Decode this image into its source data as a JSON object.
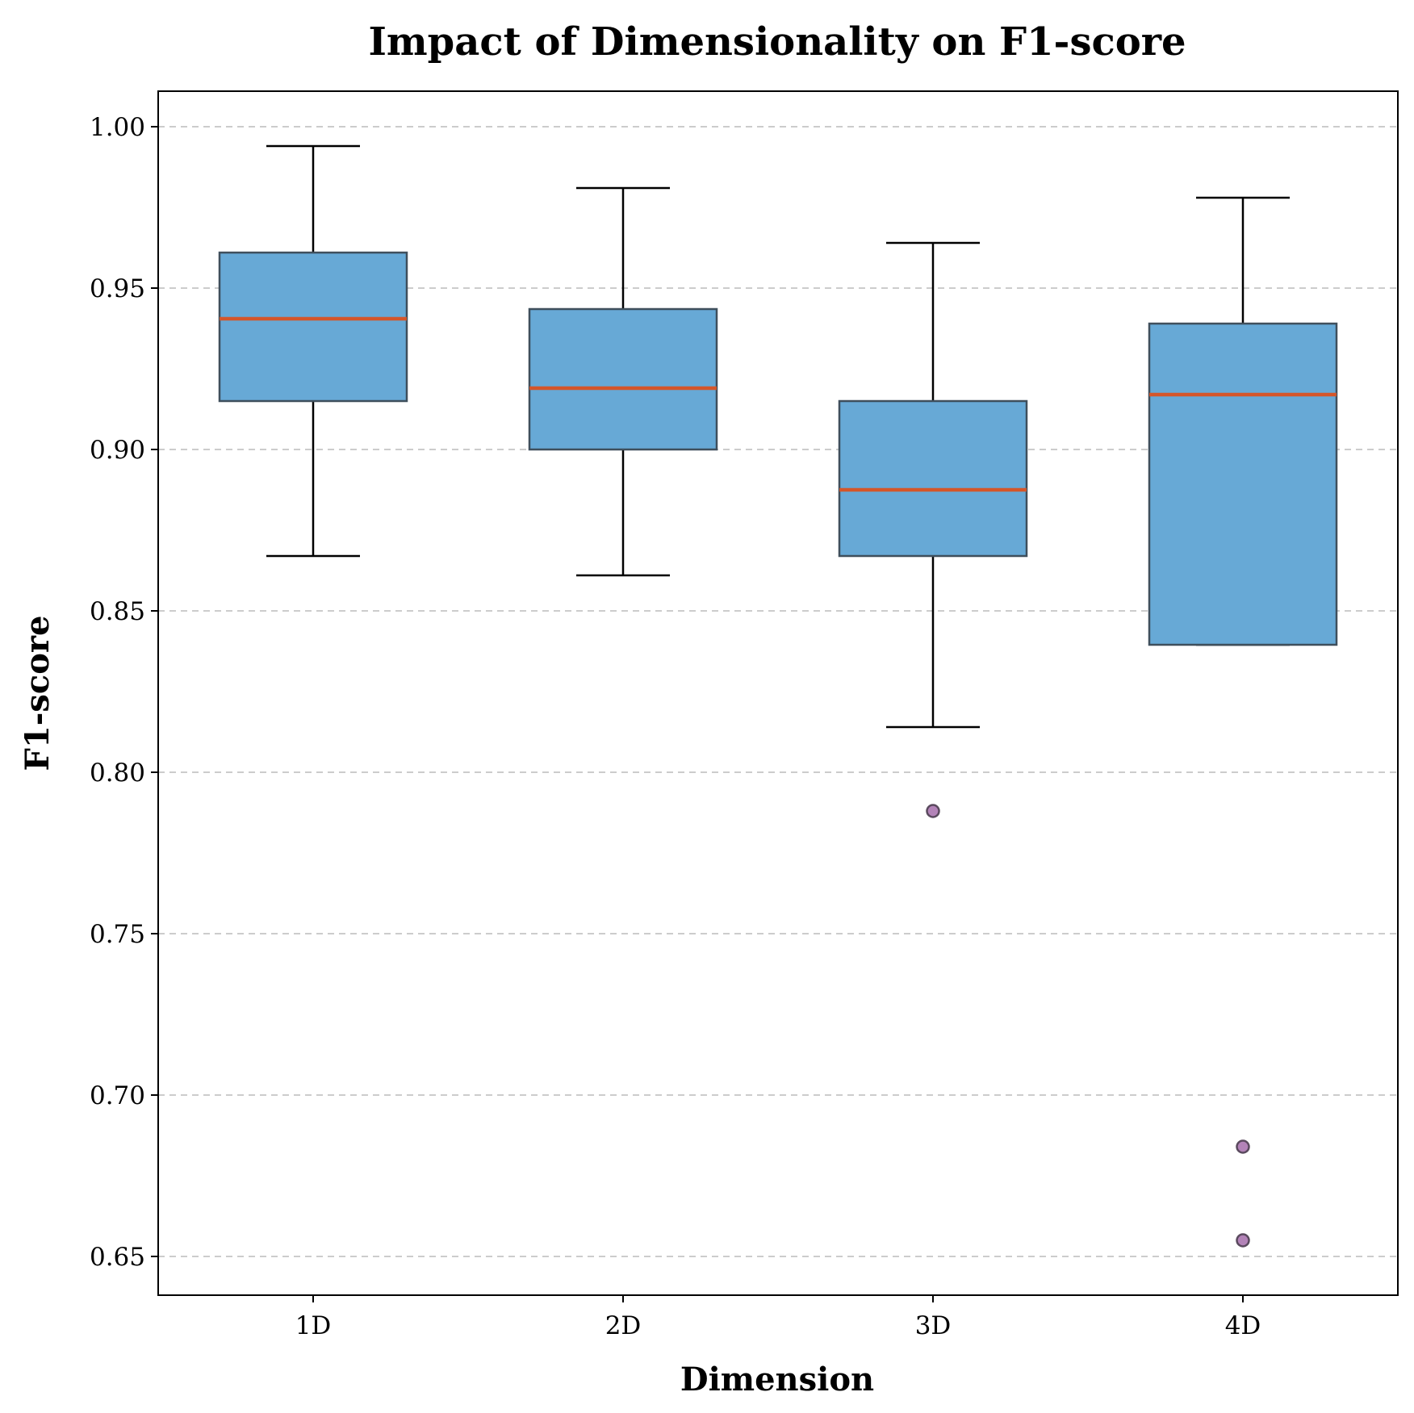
{
  "chart_data": {
    "type": "box",
    "title": "Impact of Dimensionality on F1-score",
    "xlabel": "Dimension",
    "ylabel": "F1-score",
    "categories": [
      "1D",
      "2D",
      "3D",
      "4D"
    ],
    "ylim": [
      0.638,
      1.011
    ],
    "yticks": [
      "0.65",
      "0.70",
      "0.75",
      "0.80",
      "0.85",
      "0.90",
      "0.95",
      "1.00"
    ],
    "grid": "y-dashed",
    "boxes": [
      {
        "category": "1D",
        "whisker_low": 0.867,
        "q1": 0.915,
        "median": 0.9405,
        "q3": 0.961,
        "whisker_high": 0.994,
        "outliers": []
      },
      {
        "category": "2D",
        "whisker_low": 0.861,
        "q1": 0.9,
        "median": 0.919,
        "q3": 0.9435,
        "whisker_high": 0.981,
        "outliers": []
      },
      {
        "category": "3D",
        "whisker_low": 0.814,
        "q1": 0.867,
        "median": 0.8875,
        "q3": 0.915,
        "whisker_high": 0.964,
        "outliers": [
          0.788
        ]
      },
      {
        "category": "4D",
        "whisker_low": 0.8395,
        "q1": 0.8395,
        "median": 0.917,
        "q3": 0.939,
        "whisker_high": 0.978,
        "outliers": [
          0.684,
          0.655
        ]
      }
    ],
    "colors": {
      "box_fill": "#67a9d6",
      "box_edge": "#3f4f5c",
      "median": "#d4562a",
      "whisker": "#000000",
      "outlier_fill": "#b383b8",
      "outlier_edge": "#5a4a5e",
      "grid": "#cccccc"
    }
  }
}
